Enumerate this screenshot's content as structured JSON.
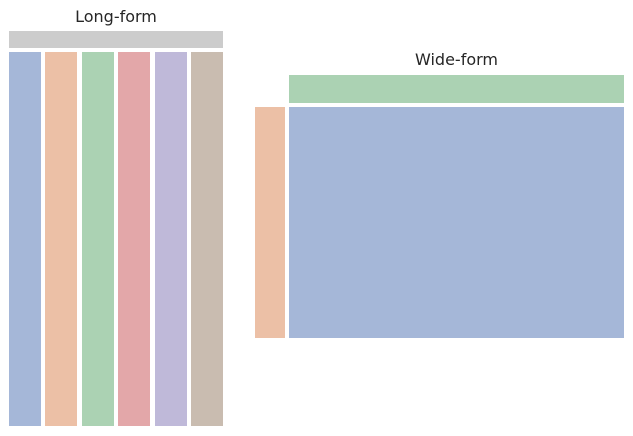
{
  "panels": {
    "long_form": {
      "title": "Long-form",
      "header_color": "#cccccc",
      "column_colors": [
        "#a5b7d8",
        "#ecc0a6",
        "#abd2b3",
        "#e3a7a9",
        "#bfb9d9",
        "#c9bcb0"
      ]
    },
    "wide_form": {
      "title": "Wide-form",
      "header_color": "#abd2b3",
      "index_color": "#ecc0a6",
      "body_color": "#a5b7d8"
    }
  }
}
